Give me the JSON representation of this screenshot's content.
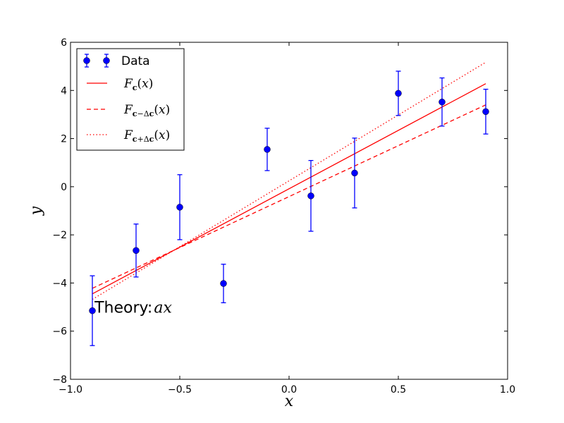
{
  "chart_data": {
    "type": "scatter",
    "title": "",
    "xlabel": "x",
    "ylabel": "y",
    "xlim": [
      -1.0,
      1.0
    ],
    "ylim": [
      -8,
      6
    ],
    "xticks": [
      -1.0,
      -0.5,
      0.0,
      0.5,
      1.0
    ],
    "xtick_labels": [
      "−1.0",
      "−0.5",
      "0.0",
      "0.5",
      "1.0"
    ],
    "yticks": [
      -8,
      -6,
      -4,
      -2,
      0,
      2,
      4,
      6
    ],
    "ytick_labels": [
      "−8",
      "−6",
      "−4",
      "−2",
      "0",
      "2",
      "4",
      "6"
    ],
    "grid": false,
    "legend_position": "top-left",
    "data": {
      "name": "Data",
      "color": "#0000ff",
      "points": [
        {
          "x": -0.9,
          "y": -5.15,
          "err": 1.45
        },
        {
          "x": -0.7,
          "y": -2.65,
          "err": 1.1
        },
        {
          "x": -0.5,
          "y": -0.85,
          "err": 1.35
        },
        {
          "x": -0.3,
          "y": -4.02,
          "err": 0.8
        },
        {
          "x": -0.1,
          "y": 1.55,
          "err": 0.88
        },
        {
          "x": 0.1,
          "y": -0.38,
          "err": 1.47
        },
        {
          "x": 0.3,
          "y": 0.57,
          "err": 1.45
        },
        {
          "x": 0.5,
          "y": 3.88,
          "err": 0.92
        },
        {
          "x": 0.7,
          "y": 3.52,
          "err": 1.0
        },
        {
          "x": 0.9,
          "y": 3.12,
          "err": 0.93
        }
      ]
    },
    "lines": [
      {
        "name": "F_c(x)",
        "style": "solid",
        "color": "#ff0000",
        "x": [
          -0.9,
          0.9
        ],
        "y": [
          -4.45,
          4.28
        ]
      },
      {
        "name": "F_{c-Δc}(x)",
        "style": "dashed",
        "color": "#ff0000",
        "x": [
          -0.9,
          0.9
        ],
        "y": [
          -4.22,
          3.4
        ]
      },
      {
        "name": "F_{c+Δc}(x)",
        "style": "dotted",
        "color": "#ff0000",
        "x": [
          -0.9,
          0.9
        ],
        "y": [
          -4.68,
          5.17
        ]
      }
    ],
    "annotation": {
      "text": "Theory: ",
      "math": "ax",
      "x": -0.89,
      "y": -5.0
    }
  }
}
